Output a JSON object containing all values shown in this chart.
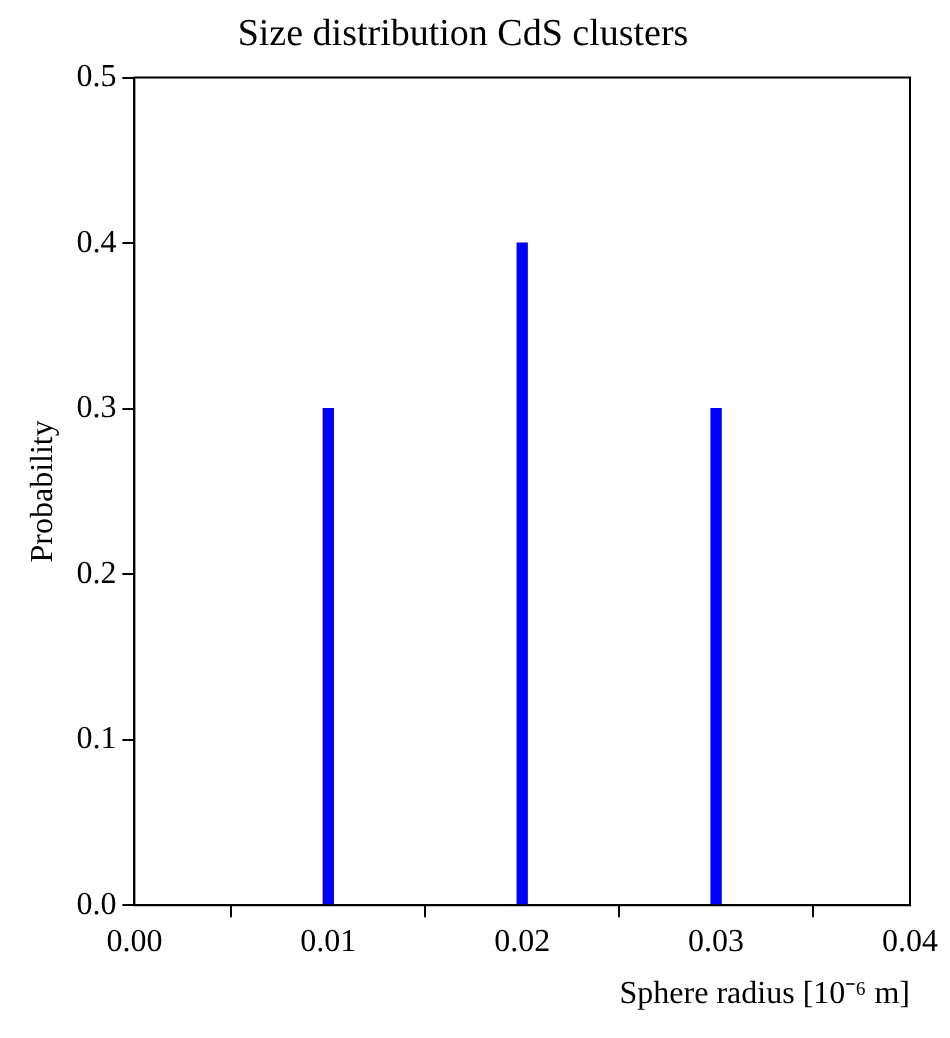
{
  "chart_data": {
    "type": "bar",
    "title": "Size distribution CdS clusters",
    "xlabel": "Sphere radius [10⁻⁶ m]",
    "ylabel": "Probability",
    "x": [
      0.01,
      0.02,
      0.03
    ],
    "values": [
      0.3,
      0.4,
      0.3
    ],
    "color": "#0000ff",
    "xlim": [
      0,
      0.04
    ],
    "xticks": [
      {
        "value": 0,
        "label": "0.00"
      },
      {
        "value": 0.01,
        "label": "0.01"
      },
      {
        "value": 0.02,
        "label": "0.02"
      },
      {
        "value": 0.03,
        "label": "0.03"
      },
      {
        "value": 0.04,
        "label": "0.04"
      }
    ],
    "ylim": [
      0,
      0.5
    ],
    "yticks": [
      {
        "value": 0,
        "label": "0.0"
      },
      {
        "value": 0.1,
        "label": "0.1"
      },
      {
        "value": 0.2,
        "label": "0.2"
      },
      {
        "value": 0.3,
        "label": "0.3"
      },
      {
        "value": 0.4,
        "label": "0.4"
      },
      {
        "value": 0.5,
        "label": "0.5"
      }
    ]
  }
}
